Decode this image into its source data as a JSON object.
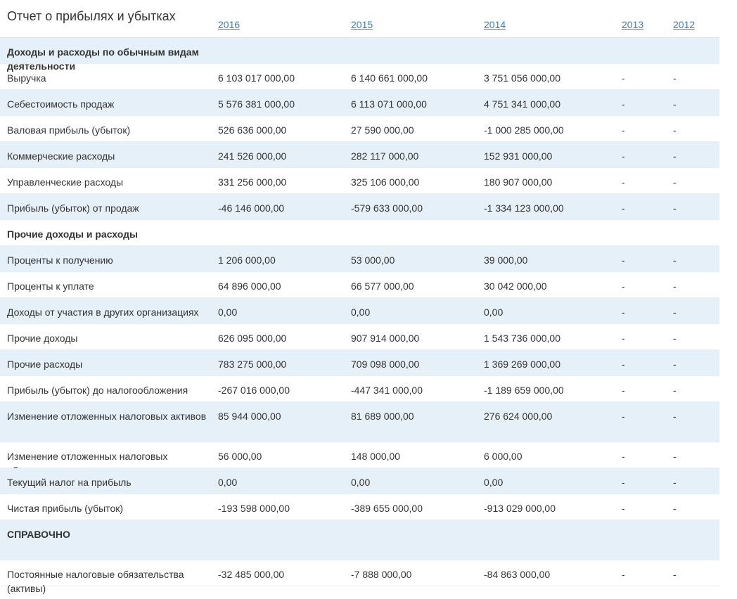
{
  "report": {
    "title": "Отчет о прибылях и убытках",
    "years": [
      "2016",
      "2015",
      "2014",
      "2013",
      "2012"
    ]
  },
  "rows": [
    {
      "type": "section",
      "label": "Доходы и расходы по обычным видам деятельности"
    },
    {
      "type": "data",
      "label": "Выручка",
      "values": [
        "6 103 017 000,00",
        "6 140 661 000,00",
        "3 751 056 000,00",
        "-",
        "-"
      ]
    },
    {
      "type": "data",
      "label": "Себестоимость продаж",
      "values": [
        "5 576 381 000,00",
        "6 113 071 000,00",
        "4 751 341 000,00",
        "-",
        "-"
      ]
    },
    {
      "type": "data",
      "label": "Валовая прибыль (убыток)",
      "values": [
        "526 636 000,00",
        "27 590 000,00",
        "-1 000 285 000,00",
        "-",
        "-"
      ]
    },
    {
      "type": "data",
      "label": "Коммерческие расходы",
      "values": [
        "241 526 000,00",
        "282 117 000,00",
        "152 931 000,00",
        "-",
        "-"
      ]
    },
    {
      "type": "data",
      "label": "Управленческие расходы",
      "values": [
        "331 256 000,00",
        "325 106 000,00",
        "180 907 000,00",
        "-",
        "-"
      ]
    },
    {
      "type": "data",
      "label": "Прибыль (убыток) от продаж",
      "values": [
        "-46 146 000,00",
        "-579 633 000,00",
        "-1 334 123 000,00",
        "-",
        "-"
      ]
    },
    {
      "type": "section",
      "label": "Прочие доходы и расходы"
    },
    {
      "type": "data",
      "label": "Проценты к получению",
      "values": [
        "1 206 000,00",
        "53 000,00",
        "39 000,00",
        "-",
        "-"
      ]
    },
    {
      "type": "data",
      "label": "Проценты к уплате",
      "values": [
        "64 896 000,00",
        "66 577 000,00",
        "30 042 000,00",
        "-",
        "-"
      ]
    },
    {
      "type": "data",
      "label": "Доходы от участия в других организациях",
      "values": [
        "0,00",
        "0,00",
        "0,00",
        "-",
        "-"
      ]
    },
    {
      "type": "data",
      "label": "Прочие доходы",
      "values": [
        "626 095 000,00",
        "907 914 000,00",
        "1 543 736 000,00",
        "-",
        "-"
      ]
    },
    {
      "type": "data",
      "label": "Прочие расходы",
      "values": [
        "783 275 000,00",
        "709 098 000,00",
        "1 369 269 000,00",
        "-",
        "-"
      ]
    },
    {
      "type": "data",
      "label": "Прибыль (убыток) до налогообложения",
      "values": [
        "-267 016 000,00",
        "-447 341 000,00",
        "-1 189 659 000,00",
        "-",
        "-"
      ]
    },
    {
      "type": "data",
      "label": "Изменение отложенных налоговых активов",
      "values": [
        "85 944 000,00",
        "81 689 000,00",
        "276 624 000,00",
        "-",
        "-"
      ]
    },
    {
      "type": "data",
      "label": "Изменение отложенных налоговых обязательств",
      "values": [
        "56 000,00",
        "148 000,00",
        "6 000,00",
        "-",
        "-"
      ]
    },
    {
      "type": "data",
      "label": "Текущий налог на прибыль",
      "values": [
        "0,00",
        "0,00",
        "0,00",
        "-",
        "-"
      ]
    },
    {
      "type": "data",
      "label": "Чистая прибыль (убыток)",
      "values": [
        "-193 598 000,00",
        "-389 655 000,00",
        "-913 029 000,00",
        "-",
        "-"
      ]
    },
    {
      "type": "section",
      "label": "СПРАВОЧНО"
    },
    {
      "type": "data",
      "label": "Постоянные налоговые обязательства (активы)",
      "values": [
        "-32 485 000,00",
        "-7 888 000,00",
        "-84 863 000,00",
        "-",
        "-"
      ]
    }
  ],
  "colors": {
    "shaded_row": "#e6f0f8",
    "link": "#3a7fc1",
    "text": "#333333"
  }
}
